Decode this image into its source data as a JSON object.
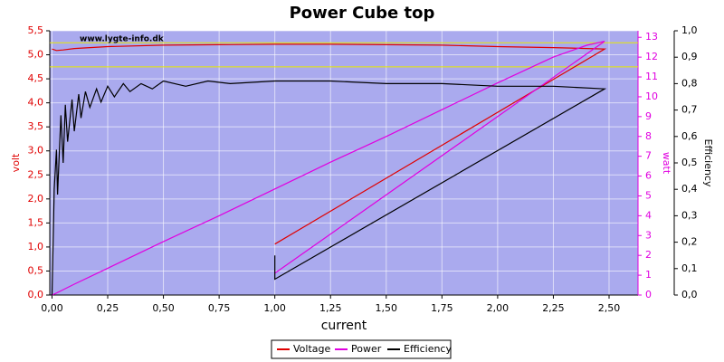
{
  "chart_data": {
    "type": "line",
    "title": "Power Cube top",
    "watermark": "www.lygte-info.dk",
    "xlabel": "current",
    "ylabel": "volt",
    "y2label": "watt",
    "y3label": "Efficiency",
    "xlim": [
      -0.01,
      2.63
    ],
    "xticks": [
      {
        "value": 0,
        "label": "0,00"
      },
      {
        "value": 0.25,
        "label": "0,25"
      },
      {
        "value": 0.5,
        "label": "0,50"
      },
      {
        "value": 0.75,
        "label": "0,75"
      },
      {
        "value": 1,
        "label": "1,00"
      },
      {
        "value": 1.25,
        "label": "1,25"
      },
      {
        "value": 1.5,
        "label": "1,50"
      },
      {
        "value": 1.75,
        "label": "1,75"
      },
      {
        "value": 2,
        "label": "2,00"
      },
      {
        "value": 2.25,
        "label": "2,25"
      },
      {
        "value": 2.5,
        "label": "2,50"
      }
    ],
    "ylim": [
      0,
      5.5
    ],
    "yticks": [
      {
        "value": 0,
        "label": "0,0"
      },
      {
        "value": 0.5,
        "label": "0,5"
      },
      {
        "value": 1,
        "label": "1,0"
      },
      {
        "value": 1.5,
        "label": "1,5"
      },
      {
        "value": 2,
        "label": "2,0"
      },
      {
        "value": 2.5,
        "label": "2,5"
      },
      {
        "value": 3,
        "label": "3,0"
      },
      {
        "value": 3.5,
        "label": "3,5"
      },
      {
        "value": 4,
        "label": "4,0"
      },
      {
        "value": 4.5,
        "label": "4,5"
      },
      {
        "value": 5,
        "label": "5,0"
      },
      {
        "value": 5.5,
        "label": "5,5"
      }
    ],
    "y2lim": [
      0,
      13.33
    ],
    "y2ticks": [
      0,
      1,
      2,
      3,
      4,
      5,
      6,
      7,
      8,
      9,
      10,
      11,
      12,
      13
    ],
    "y3lim": [
      0,
      1
    ],
    "y3ticks": [
      {
        "value": 0,
        "label": "0,0"
      },
      {
        "value": 0.1,
        "label": "0,1"
      },
      {
        "value": 0.2,
        "label": "0,2"
      },
      {
        "value": 0.3,
        "label": "0,3"
      },
      {
        "value": 0.4,
        "label": "0,4"
      },
      {
        "value": 0.5,
        "label": "0,5"
      },
      {
        "value": 0.6,
        "label": "0,6"
      },
      {
        "value": 0.7,
        "label": "0,7"
      },
      {
        "value": 0.8,
        "label": "0,8"
      },
      {
        "value": 0.9,
        "label": "0,9"
      },
      {
        "value": 1,
        "label": "1,0"
      }
    ],
    "reference_lines": [
      5.25,
      4.75
    ],
    "reference_color": "#e8e800",
    "grid": true,
    "series": [
      {
        "name": "Voltage",
        "color": "#e00000",
        "axis": "y",
        "x": [
          0,
          0.02,
          0.05,
          0.1,
          0.25,
          0.5,
          0.75,
          1,
          1.25,
          1.5,
          1.75,
          2,
          2.25,
          2.4,
          2.48,
          1
        ],
        "values": [
          5.12,
          5.09,
          5.1,
          5.13,
          5.17,
          5.2,
          5.21,
          5.22,
          5.22,
          5.21,
          5.2,
          5.17,
          5.15,
          5.13,
          5.12,
          1.06
        ]
      },
      {
        "name": "Power",
        "color": "#e000e0",
        "axis": "y2",
        "x": [
          0,
          0.02,
          0.05,
          0.1,
          0.25,
          0.5,
          0.75,
          1,
          1.25,
          1.5,
          1.75,
          2,
          2.25,
          2.4,
          2.48,
          1
        ],
        "values": [
          0,
          0.1,
          0.27,
          0.55,
          1.35,
          2.7,
          4.0,
          5.35,
          6.7,
          8.0,
          9.35,
          10.7,
          12.0,
          12.6,
          12.8,
          1.1
        ]
      },
      {
        "name": "Efficiency",
        "color": "#000000",
        "axis": "y3",
        "x": [
          0,
          0.01,
          0.02,
          0.025,
          0.04,
          0.05,
          0.06,
          0.07,
          0.09,
          0.1,
          0.12,
          0.13,
          0.15,
          0.17,
          0.2,
          0.22,
          0.25,
          0.28,
          0.32,
          0.35,
          0.4,
          0.45,
          0.5,
          0.6,
          0.7,
          0.8,
          1,
          1.25,
          1.5,
          1.75,
          2,
          2.25,
          2.48,
          1,
          1
        ],
        "values": [
          0,
          0.4,
          0.55,
          0.38,
          0.68,
          0.5,
          0.72,
          0.58,
          0.74,
          0.62,
          0.76,
          0.67,
          0.77,
          0.71,
          0.78,
          0.73,
          0.79,
          0.75,
          0.8,
          0.77,
          0.8,
          0.78,
          0.81,
          0.79,
          0.81,
          0.8,
          0.81,
          0.81,
          0.8,
          0.8,
          0.79,
          0.79,
          0.78,
          0.06,
          0.15
        ]
      }
    ]
  }
}
